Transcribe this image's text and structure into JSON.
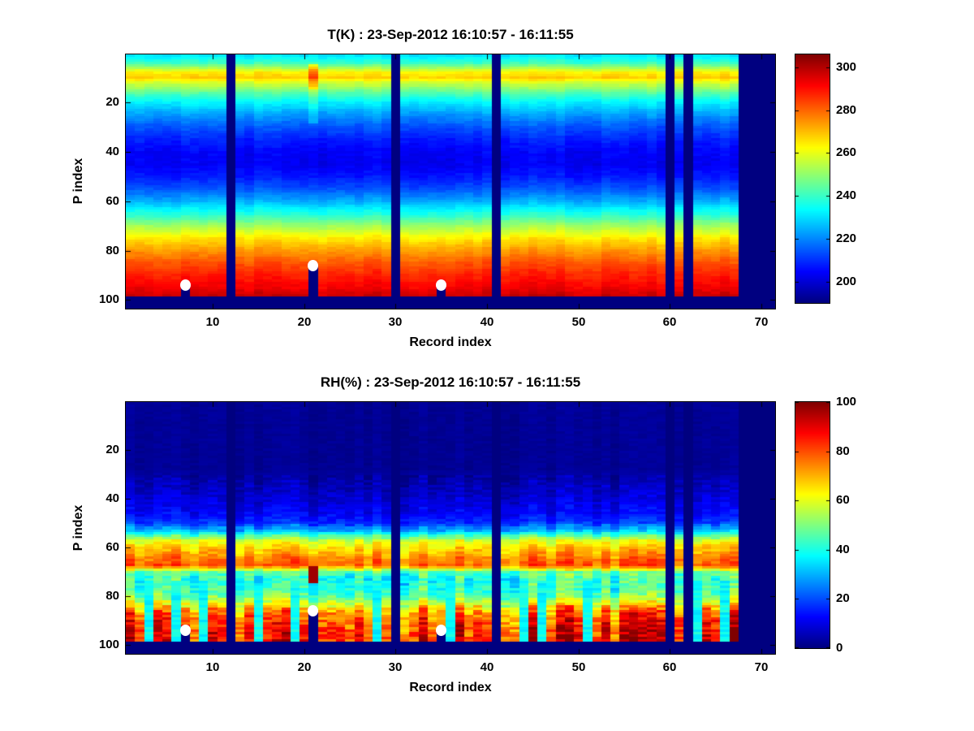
{
  "figure": {
    "background_color": "#ffffff",
    "marker_color": "#ffffff",
    "axis_color": "#000000"
  },
  "chart_data": [
    {
      "type": "heatmap",
      "title": "T(K) : 23-Sep-2012 16:10:57 - 16:11:55",
      "xlabel": "Record index",
      "ylabel": "P index",
      "x_ticks": [
        10,
        20,
        30,
        40,
        50,
        60,
        70
      ],
      "y_ticks": [
        20,
        40,
        60,
        80,
        100
      ],
      "xlim": [
        0.5,
        71.5
      ],
      "ylim": [
        0.5,
        103.5
      ],
      "n_records": 71,
      "n_levels": 103,
      "valid_levels": 98,
      "colormap": "jet",
      "missing_color": "#000080",
      "caxis": [
        190,
        306
      ],
      "colorbar_ticks": [
        200,
        220,
        240,
        260,
        280,
        300
      ],
      "profile_p": [
        1,
        4,
        8,
        10,
        12,
        16,
        20,
        25,
        30,
        35,
        40,
        45,
        50,
        55,
        60,
        65,
        70,
        75,
        80,
        85,
        90,
        95,
        98
      ],
      "profile_value": [
        231,
        240,
        264,
        268,
        258,
        243,
        232,
        222,
        214,
        208,
        204,
        203,
        207,
        214,
        224,
        237,
        252,
        265,
        274,
        282,
        288,
        293,
        297
      ],
      "noise_bands": [
        {
          "p_to": 103,
          "column": 2.0,
          "cell": 1.6
        }
      ],
      "missing_records": [
        12,
        30,
        41,
        60,
        62,
        68,
        69,
        70,
        71
      ],
      "anomalies": [
        {
          "record": 21,
          "p_from": 5,
          "p_to": 14,
          "delta": 16
        },
        {
          "record": 21,
          "p_from": 15,
          "p_to": 28,
          "delta": 6
        }
      ],
      "surface_markers": [
        {
          "record": 7,
          "p": 94
        },
        {
          "record": 21,
          "p": 86
        },
        {
          "record": 35,
          "p": 94
        }
      ]
    },
    {
      "type": "heatmap",
      "title": "RH(%) : 23-Sep-2012 16:10:57 - 16:11:55",
      "xlabel": "Record index",
      "ylabel": "P index",
      "x_ticks": [
        10,
        20,
        30,
        40,
        50,
        60,
        70
      ],
      "y_ticks": [
        20,
        40,
        60,
        80,
        100
      ],
      "xlim": [
        0.5,
        71.5
      ],
      "ylim": [
        0.5,
        103.5
      ],
      "n_records": 71,
      "n_levels": 103,
      "valid_levels": 98,
      "colormap": "jet",
      "missing_color": "#000080",
      "caxis": [
        0,
        100
      ],
      "value_clip": [
        0,
        100
      ],
      "colorbar_ticks": [
        0,
        20,
        40,
        60,
        80,
        100
      ],
      "profile_p": [
        1,
        28,
        34,
        40,
        46,
        50,
        53,
        55,
        57,
        59,
        62,
        65,
        67,
        68,
        70,
        73,
        77,
        80,
        83,
        86,
        90,
        94,
        98
      ],
      "profile_value": [
        2,
        2,
        5,
        8,
        12,
        17,
        30,
        45,
        58,
        64,
        70,
        76,
        78,
        70,
        46,
        40,
        43,
        48,
        60,
        73,
        81,
        85,
        85
      ],
      "noise_bands": [
        {
          "p_to": 30,
          "column": 1,
          "cell": 1
        },
        {
          "p_to": 50,
          "column": 3,
          "cell": 3
        },
        {
          "p_to": 58,
          "column": 5,
          "cell": 4
        },
        {
          "p_to": 70,
          "column": 6,
          "cell": 4
        },
        {
          "p_to": 83,
          "column": 9,
          "cell": 6
        },
        {
          "p_to": 103,
          "column": 14,
          "cell": 8
        }
      ],
      "missing_records": [
        12,
        30,
        41,
        60,
        62,
        68,
        69,
        70,
        71
      ],
      "anomalies": [
        {
          "record": 21,
          "p_from": 68,
          "p_to": 74,
          "set": 97
        }
      ],
      "low_value_records": [
        3,
        6,
        9,
        15,
        19,
        28,
        36,
        44,
        46,
        51,
        63,
        66
      ],
      "low_value_from_p": 74,
      "low_value_cap": 38,
      "surface_markers": [
        {
          "record": 7,
          "p": 94
        },
        {
          "record": 21,
          "p": 86
        },
        {
          "record": 35,
          "p": 94
        }
      ]
    }
  ]
}
